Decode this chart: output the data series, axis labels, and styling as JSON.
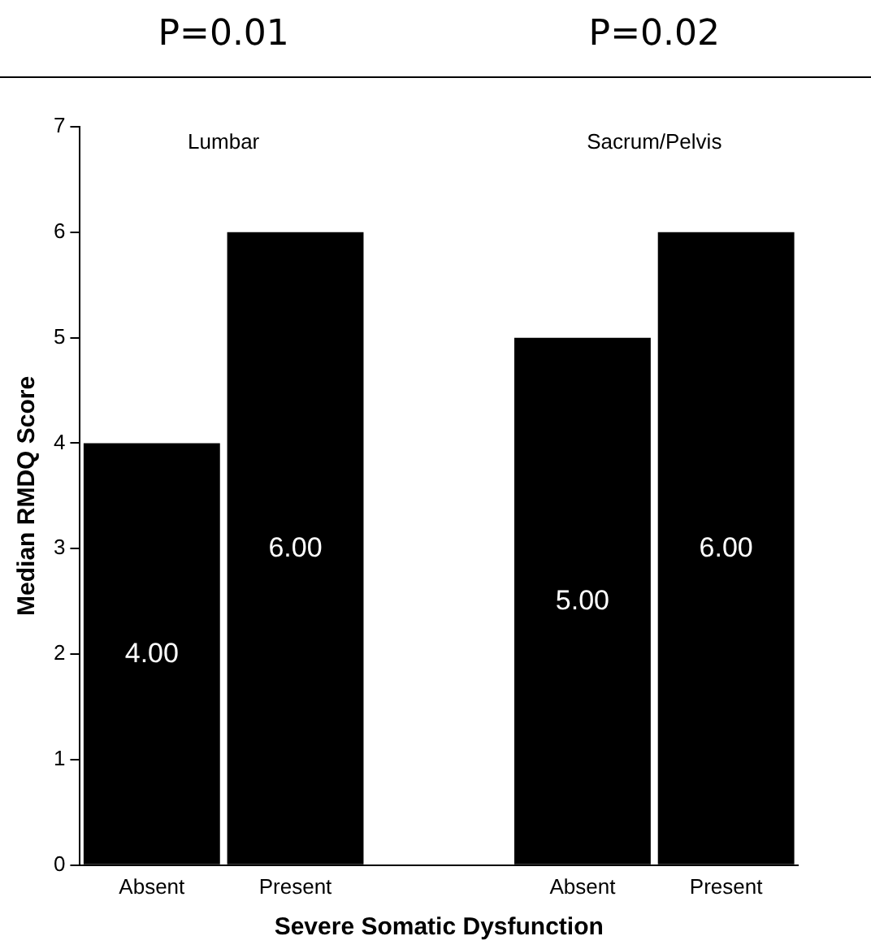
{
  "chart_data": {
    "type": "bar",
    "ylabel": "Median RMDQ Score",
    "xlabel": "Severe Somatic Dysfunction",
    "categories": [
      "Absent",
      "Present",
      null,
      "Absent",
      "Present"
    ],
    "values": [
      4,
      6,
      null,
      5,
      6
    ],
    "value_labels": [
      "4.00",
      "6.00",
      null,
      "5.00",
      "6.00"
    ],
    "color": "#000000",
    "ylim": [
      0,
      7
    ],
    "yticks": [
      0,
      1,
      2,
      3,
      4,
      5,
      6,
      7
    ],
    "grid": false,
    "legend": false,
    "annotations": [
      "P=0.01",
      "P=0.02",
      "Lumbar",
      "Sacrum/Pelvis"
    ]
  }
}
